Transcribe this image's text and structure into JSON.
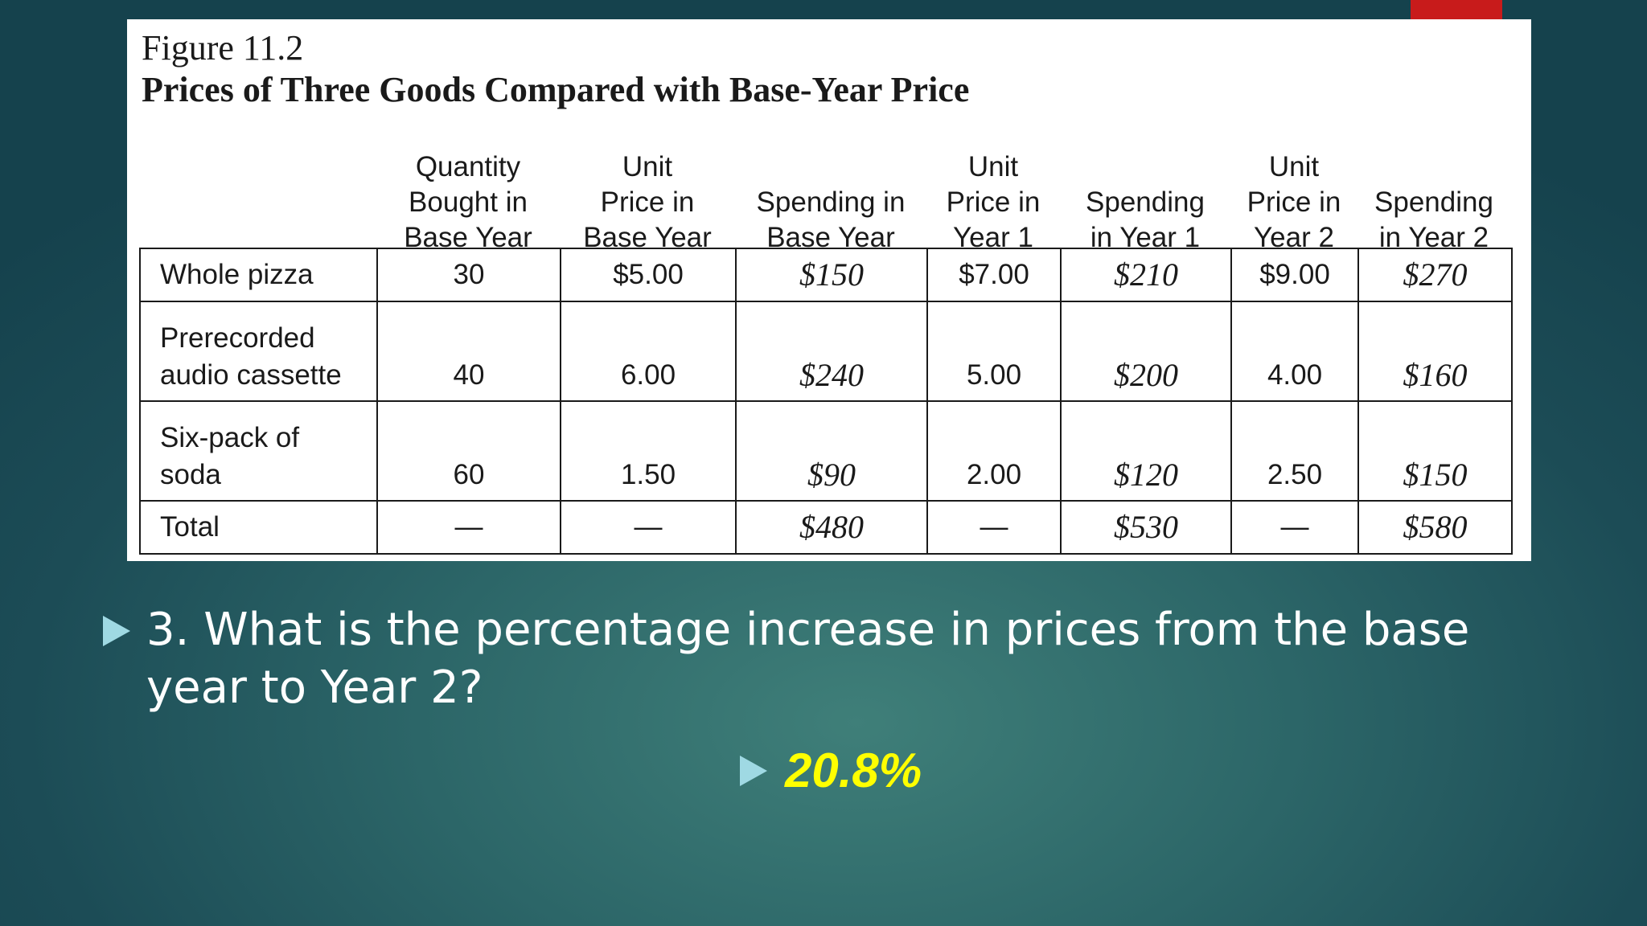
{
  "figure": {
    "number": "Figure 11.2",
    "title": "Prices of Three Goods Compared with Base-Year Price"
  },
  "table": {
    "headers": [
      "Quantity\nBought in\nBase Year",
      "Unit\nPrice in\nBase Year",
      "Spending in\nBase Year",
      "Unit\nPrice in\nYear 1",
      "Spending\nin Year 1",
      "Unit\nPrice in\nYear 2",
      "Spending\nin Year 2"
    ],
    "rows": [
      {
        "label": "Whole pizza",
        "cells": [
          "30",
          "$5.00",
          "$150",
          "$7.00",
          "$210",
          "$9.00",
          "$270"
        ]
      },
      {
        "label": "Prerecorded\naudio cassette",
        "cells": [
          "40",
          "6.00",
          "$240",
          "5.00",
          "$200",
          "4.00",
          "$160"
        ]
      },
      {
        "label": "Six-pack of\nsoda",
        "cells": [
          "60",
          "1.50",
          "$90",
          "2.00",
          "$120",
          "2.50",
          "$150"
        ]
      },
      {
        "label": "Total",
        "cells": [
          "—",
          "—",
          "$480",
          "—",
          "$530",
          "—",
          "$580"
        ]
      }
    ]
  },
  "question": "3. What is the percentage increase in prices from the base year to Year 2?",
  "answer": "20.8%",
  "colors": {
    "background": "#1c4c56",
    "bullet": "#9fd9e3",
    "answer": "#ffff00",
    "accent_tab": "#c81b1b"
  },
  "icons": [
    "triangle-bullet-icon"
  ]
}
